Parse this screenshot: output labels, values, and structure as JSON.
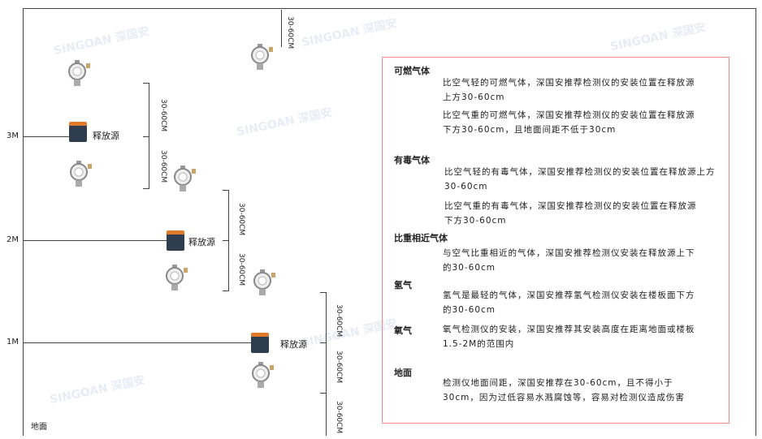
{
  "levels": {
    "m3": "3M",
    "m2": "2M",
    "m1": "1M",
    "floor": "地面"
  },
  "dimension_label": "30-60CM",
  "source_label": "释放源",
  "watermark": "SINGOAN 深国安",
  "panel": {
    "flammable": {
      "title": "可燃气体",
      "light": "比空气轻的可燃气体，深国安推荐检测仪的安装位置在释放源上方30-60cm",
      "heavy": "比空气重的可燃气体，深国安推荐检测仪的安装位置在释放源下方30-60cm，且地面间距不低于30cm"
    },
    "toxic": {
      "title": "有毒气体",
      "light": "比空气轻的有毒气体，深国安推荐检测仪的安装位置在释放源上方30-60cm",
      "heavy": "比空气重的有毒气体，深国安推荐检测仪的安装位置在释放源下方30-60cm"
    },
    "similar": {
      "title": "比重相近气体",
      "text": "与空气比重相近的气体，深国安推荐检测仪安装在释放源上下的30-60cm"
    },
    "hydrogen": {
      "title": "氢气",
      "text": "氢气是最轻的气体，深国安推荐氢气检测仪安装在楼板面下方的30-60cm"
    },
    "oxygen": {
      "title": "氧气",
      "text": "氧气检测仪的安装，深国安推荐其安装高度在距离地面或楼板1.5-2M的范围内"
    },
    "ground": {
      "title": "地面",
      "text": "检测仪地面间距，深国安推荐在30-60cm，且不得小于30cm，因为过低容易水溅腐蚀等，容易对检测仪造成伤害"
    }
  }
}
